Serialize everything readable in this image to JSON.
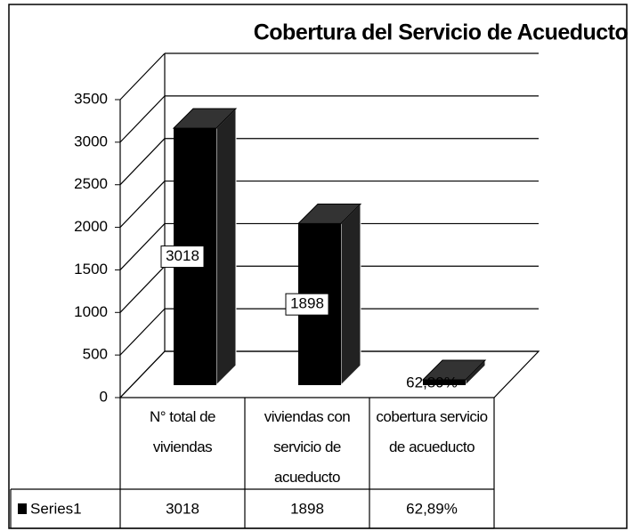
{
  "chart_data": {
    "type": "bar3d",
    "title": "Cobertura del Servicio de Acueducto",
    "categories": [
      "N° total de viviendas",
      "viviendas con servicio de acueducto",
      "cobertura servicio de acueducto"
    ],
    "series": [
      {
        "name": "Series1",
        "color": "#000000",
        "values": [
          3018,
          1898,
          62.89
        ],
        "value_labels": [
          "3018",
          "1898",
          "62,89%"
        ]
      }
    ],
    "ylim": [
      0,
      3500
    ],
    "yticks": [
      0,
      500,
      1000,
      1500,
      2000,
      2500,
      3000,
      3500
    ],
    "grid": true,
    "data_table": true
  }
}
